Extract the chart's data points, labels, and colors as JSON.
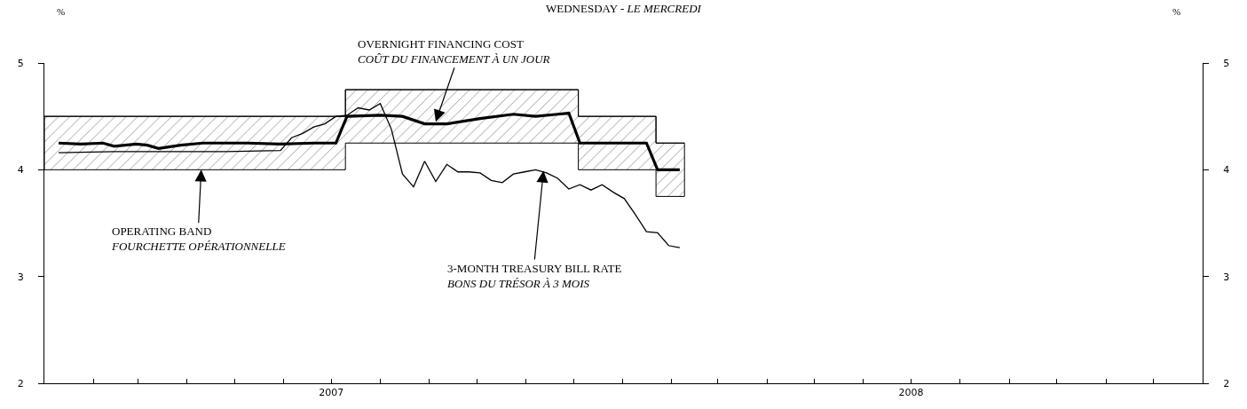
{
  "chart_data": {
    "type": "line",
    "title": "WEDNESDAY - LE MERCREDI",
    "ylabel": "%",
    "y2label": "%",
    "xlim": [
      "2007-01-01",
      "2009-01-01"
    ],
    "xticks": [
      {
        "value": "2007-01-01",
        "label": null
      },
      {
        "value": "2007-02-01",
        "label": null
      },
      {
        "value": "2007-03-01",
        "label": null
      },
      {
        "value": "2007-04-01",
        "label": null
      },
      {
        "value": "2007-05-01",
        "label": null
      },
      {
        "value": "2007-06-01",
        "label": null
      },
      {
        "value": "2007-07-01",
        "label": "2007"
      },
      {
        "value": "2007-08-01",
        "label": null
      },
      {
        "value": "2007-09-01",
        "label": null
      },
      {
        "value": "2007-10-01",
        "label": null
      },
      {
        "value": "2007-11-01",
        "label": null
      },
      {
        "value": "2007-12-01",
        "label": null
      },
      {
        "value": "2008-01-01",
        "label": null
      },
      {
        "value": "2008-02-01",
        "label": null
      },
      {
        "value": "2008-03-01",
        "label": null
      },
      {
        "value": "2008-04-01",
        "label": null
      },
      {
        "value": "2008-05-01",
        "label": null
      },
      {
        "value": "2008-06-01",
        "label": null
      },
      {
        "value": "2008-07-01",
        "label": "2008"
      },
      {
        "value": "2008-08-01",
        "label": null
      },
      {
        "value": "2008-09-01",
        "label": null
      },
      {
        "value": "2008-10-01",
        "label": null
      },
      {
        "value": "2008-11-01",
        "label": null
      },
      {
        "value": "2008-12-01",
        "label": null
      },
      {
        "value": "2009-01-01",
        "label": null
      }
    ],
    "ylim": [
      2,
      5
    ],
    "yticks": [
      2,
      3,
      4,
      5
    ],
    "y2lim": [
      2,
      5
    ],
    "y2ticks": [
      2,
      3,
      4,
      5
    ],
    "marker": "none",
    "line_style": "solid",
    "series": [
      {
        "type": "step",
        "color": "#000000",
        "x": [
          "2007-01-01",
          "2007-07-10",
          "2007-12-04",
          "2008-01-22",
          "2008-02-09"
        ],
        "values": [
          4.5,
          4.75,
          4.5,
          4.25,
          4.25
        ],
        "lower": [
          4.0,
          4.25,
          4.0,
          3.75,
          3.75
        ],
        "upper": [
          4.5,
          4.75,
          4.5,
          4.25,
          4.25
        ]
      },
      {
        "color": "#000000",
        "x": [
          "2007-01-10",
          "2007-01-24",
          "2007-02-07",
          "2007-02-14",
          "2007-02-28",
          "2007-03-07",
          "2007-03-14",
          "2007-03-28",
          "2007-04-11",
          "2007-05-09",
          "2007-05-30",
          "2007-06-20",
          "2007-07-04",
          "2007-07-11",
          "2007-08-01",
          "2007-08-15",
          "2007-08-29",
          "2007-09-12",
          "2007-10-03",
          "2007-10-24",
          "2007-11-07",
          "2007-11-21",
          "2007-11-28",
          "2007-12-05",
          "2007-12-12",
          "2008-01-16",
          "2008-01-23",
          "2008-02-06"
        ],
        "values": [
          4.25,
          4.24,
          4.25,
          4.22,
          4.24,
          4.23,
          4.2,
          4.23,
          4.25,
          4.25,
          4.24,
          4.25,
          4.25,
          4.5,
          4.51,
          4.5,
          4.43,
          4.43,
          4.48,
          4.52,
          4.5,
          4.52,
          4.53,
          4.25,
          4.25,
          4.25,
          4.0,
          4.0
        ]
      },
      {
        "color": "#000000",
        "x": [
          "2007-01-10",
          "2007-02-14",
          "2007-03-21",
          "2007-04-25",
          "2007-05-30",
          "2007-06-06",
          "2007-06-13",
          "2007-06-20",
          "2007-06-27",
          "2007-07-04",
          "2007-07-11",
          "2007-07-18",
          "2007-07-25",
          "2007-08-01",
          "2007-08-08",
          "2007-08-15",
          "2007-08-22",
          "2007-08-29",
          "2007-09-05",
          "2007-09-12",
          "2007-09-19",
          "2007-09-26",
          "2007-10-03",
          "2007-10-10",
          "2007-10-17",
          "2007-10-24",
          "2007-10-31",
          "2007-11-07",
          "2007-11-14",
          "2007-11-21",
          "2007-11-28",
          "2007-12-05",
          "2007-12-12",
          "2007-12-19",
          "2007-12-26",
          "2008-01-02",
          "2008-01-09",
          "2008-01-16",
          "2008-01-23",
          "2008-01-30",
          "2008-02-06"
        ],
        "values": [
          4.16,
          4.17,
          4.17,
          4.17,
          4.18,
          4.3,
          4.34,
          4.4,
          4.43,
          4.5,
          4.51,
          4.58,
          4.56,
          4.62,
          4.38,
          3.96,
          3.84,
          4.08,
          3.89,
          4.05,
          3.98,
          3.98,
          3.97,
          3.9,
          3.88,
          3.96,
          3.98,
          4.0,
          3.97,
          3.92,
          3.82,
          3.86,
          3.81,
          3.86,
          3.79,
          3.73,
          3.58,
          3.42,
          3.41,
          3.29,
          3.27
        ]
      }
    ],
    "annotations": [
      {
        "text": "OVERNIGHT FINANCING COST\nCOÛT DU FINANCEMENT À UN JOUR",
        "x": "2007-09-05",
        "y": 4.45
      },
      {
        "text": "OPERATING BAND\nFOURCHETTE OPÉRATIONNELLE",
        "x": "2007-04-10",
        "y": 4.0
      },
      {
        "text": "3-MONTH TREASURY BILL RATE\nBONS DU TRÉSOR À 3 MOIS",
        "x": "2007-11-12",
        "y": 3.99
      }
    ]
  }
}
